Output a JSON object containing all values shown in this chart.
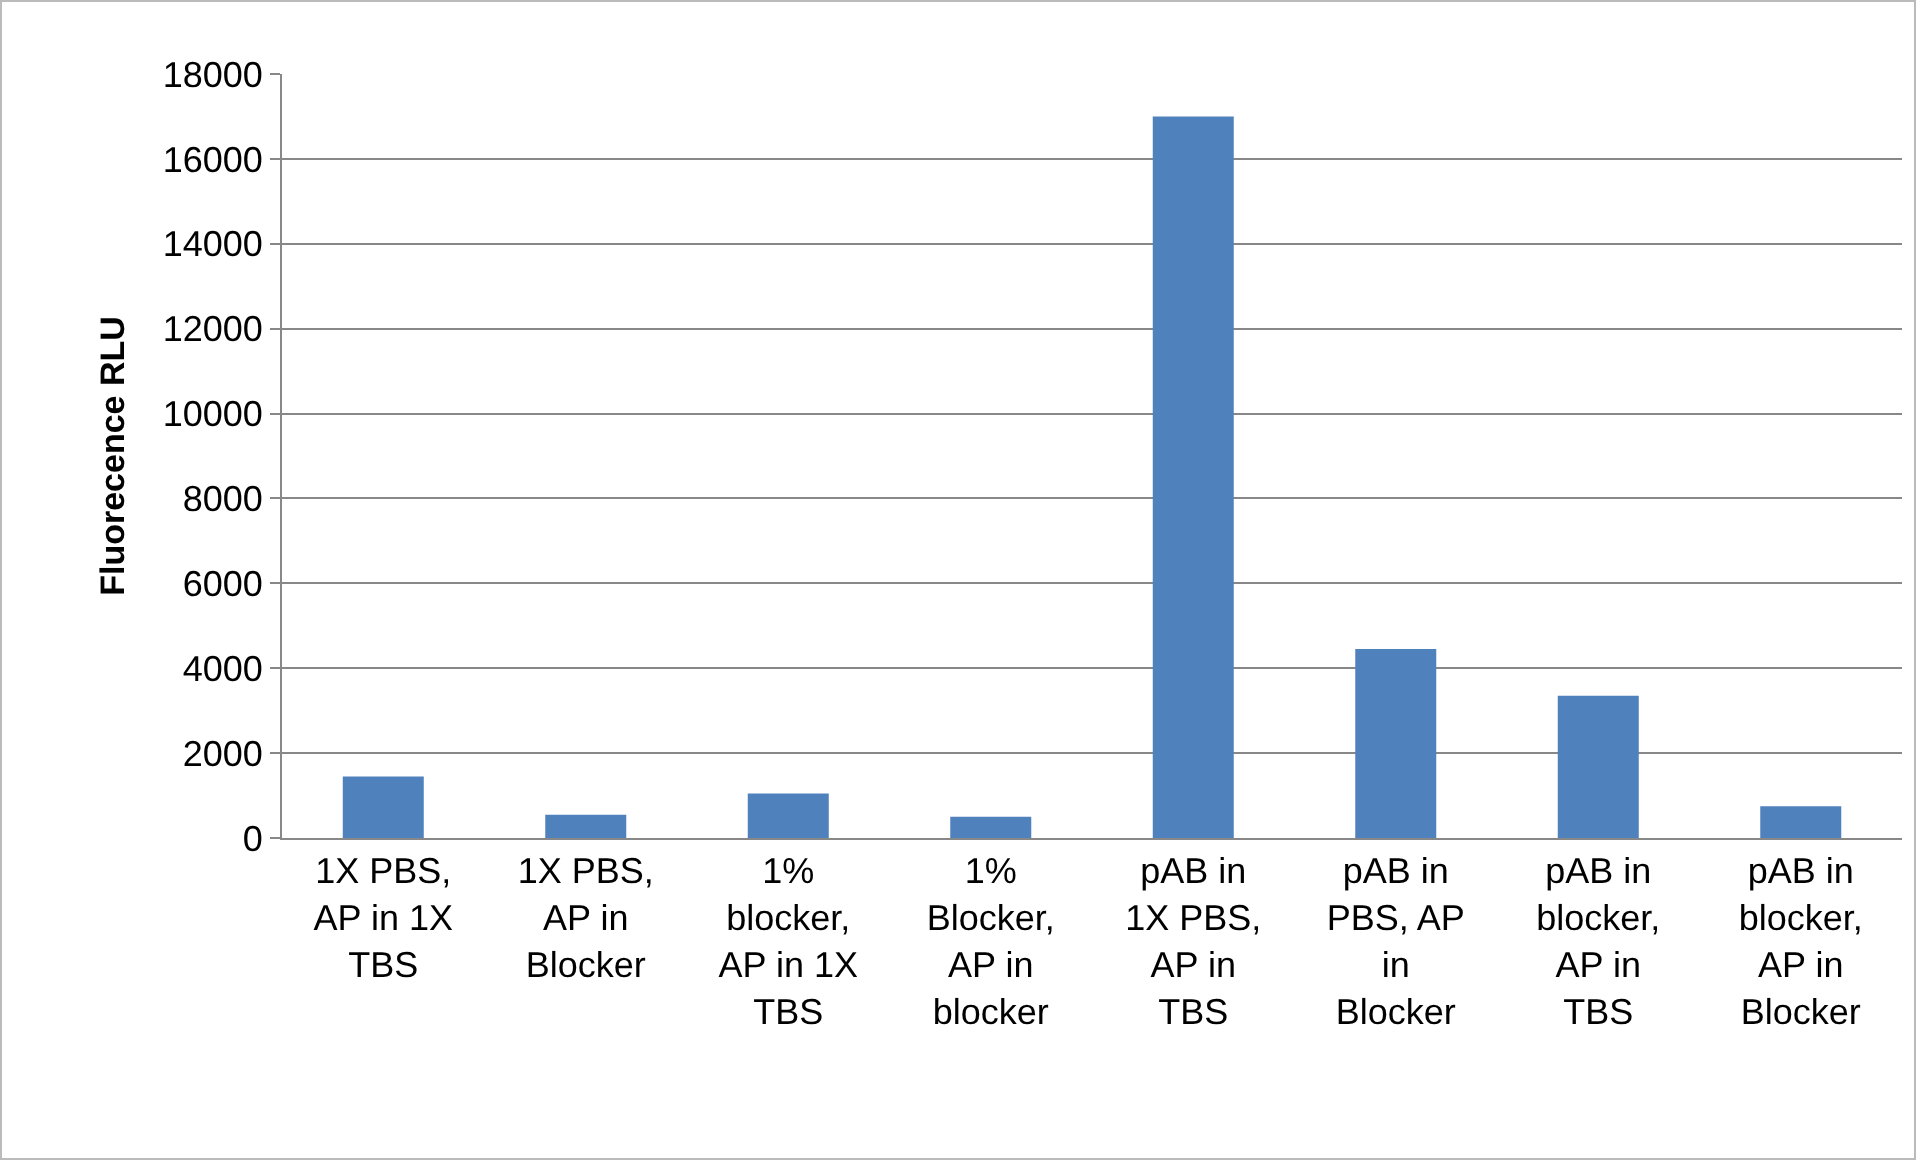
{
  "chart_data": {
    "type": "bar",
    "ylabel": "Fluorecence RLU",
    "categories": [
      "1X PBS, AP in 1X TBS",
      "1X PBS, AP in Blocker",
      "1% blocker, AP in 1X TBS",
      "1% Blocker, AP in blocker",
      "pAB in 1X PBS, AP in TBS",
      "pAB in PBS, AP in Blocker",
      "pAB in blocker, AP in TBS",
      "pAB in blocker, AP in Blocker"
    ],
    "values": [
      1450,
      550,
      1050,
      500,
      17000,
      4450,
      3350,
      750
    ],
    "color": "#4f81bd",
    "ylim": [
      0,
      18000
    ],
    "yticks": [
      0,
      2000,
      4000,
      6000,
      8000,
      10000,
      12000,
      14000,
      16000,
      18000
    ],
    "grid": "y"
  }
}
